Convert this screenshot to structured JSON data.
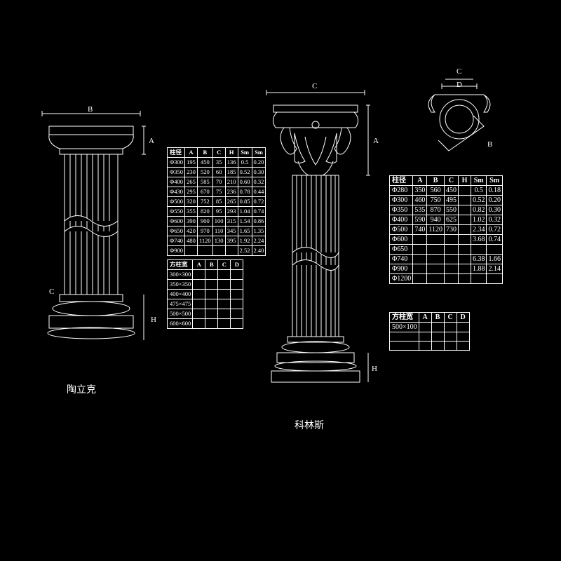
{
  "column1": {
    "name": "陶立克",
    "dims": {
      "top": "B",
      "upper": "A",
      "mid": "C",
      "lower": "H"
    }
  },
  "column2": {
    "name": "科林斯",
    "dims": {
      "top": "C",
      "upper": "A",
      "lower": "H"
    }
  },
  "plan": {
    "labels": {
      "C": "C",
      "D": "D",
      "B": "B"
    }
  },
  "table1": {
    "headers": [
      "柱径",
      "A",
      "B",
      "C",
      "H",
      "Sm",
      "Sm"
    ],
    "rows": [
      [
        "Φ300",
        "195",
        "450",
        "35",
        "136",
        "0.5",
        "0.20"
      ],
      [
        "Φ350",
        "230",
        "520",
        "60",
        "185",
        "0.52",
        "0.30"
      ],
      [
        "Φ400",
        "265",
        "585",
        "70",
        "210",
        "0.60",
        "0.32"
      ],
      [
        "Φ430",
        "295",
        "670",
        "75",
        "236",
        "0.78",
        "0.44"
      ],
      [
        "Φ500",
        "320",
        "752",
        "85",
        "265",
        "0.85",
        "0.72"
      ],
      [
        "Φ550",
        "355",
        "820",
        "95",
        "293",
        "1.04",
        "0.74"
      ],
      [
        "Φ600",
        "390",
        "900",
        "100",
        "315",
        "1.54",
        "0.86"
      ],
      [
        "Φ650",
        "420",
        "970",
        "110",
        "345",
        "1.65",
        "1.35"
      ],
      [
        "Φ740",
        "480",
        "1120",
        "130",
        "395",
        "1.92",
        "2.24"
      ],
      [
        "Φ900",
        "",
        "",
        "",
        "",
        "2.52",
        "2.40"
      ]
    ]
  },
  "table2": {
    "headers": [
      "方柱宽",
      "A",
      "B",
      "C",
      "D"
    ],
    "rows": [
      [
        "300×300",
        "",
        "",
        "",
        ""
      ],
      [
        "350×350",
        "",
        "",
        "",
        ""
      ],
      [
        "400×400",
        "",
        "",
        "",
        ""
      ],
      [
        "475×475",
        "",
        "",
        "",
        ""
      ],
      [
        "500×500",
        "",
        "",
        "",
        ""
      ],
      [
        "600×600",
        "",
        "",
        "",
        ""
      ]
    ]
  },
  "table3": {
    "headers": [
      "柱径",
      "A",
      "B",
      "C",
      "H",
      "Sm",
      "Sm"
    ],
    "rows": [
      [
        "Φ280",
        "350",
        "560",
        "450",
        "",
        "0.5",
        "0.18"
      ],
      [
        "Φ300",
        "460",
        "750",
        "495",
        "",
        "0.52",
        "0.20"
      ],
      [
        "Φ350",
        "535",
        "870",
        "550",
        "",
        "0.82",
        "0.30"
      ],
      [
        "Φ400",
        "590",
        "940",
        "625",
        "",
        "1.02",
        "0.32"
      ],
      [
        "Φ500",
        "740",
        "1120",
        "730",
        "",
        "2.34",
        "0.72"
      ],
      [
        "Φ600",
        "",
        "",
        "",
        "",
        "3.68",
        "0.74"
      ],
      [
        "Φ650",
        "",
        "",
        "",
        "",
        "",
        ""
      ],
      [
        "Φ740",
        "",
        "",
        "",
        "",
        "6.38",
        "1.66"
      ],
      [
        "Φ900",
        "",
        "",
        "",
        "",
        "1.88",
        "2.14"
      ],
      [
        "Φ1200",
        "",
        "",
        "",
        "",
        "",
        ""
      ]
    ]
  },
  "table4": {
    "headers": [
      "方柱宽",
      "A",
      "B",
      "C",
      "D"
    ],
    "rows": [
      [
        "500×100",
        "",
        "",
        "",
        ""
      ],
      [
        "",
        "",
        "",
        "",
        ""
      ],
      [
        "",
        "",
        "",
        "",
        ""
      ]
    ]
  },
  "colors": {
    "bg": "#000000",
    "line": "#ffffff"
  }
}
